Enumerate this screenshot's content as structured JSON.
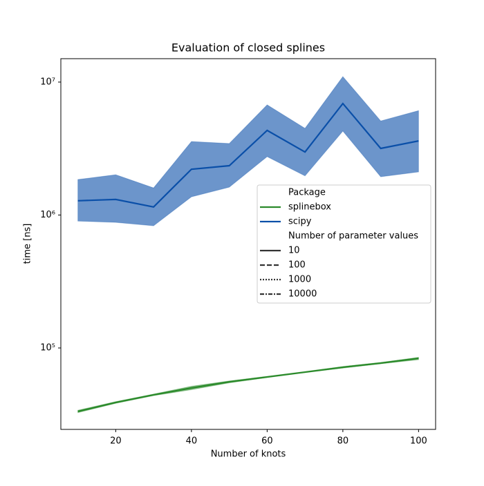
{
  "chart_data": {
    "type": "line",
    "title": "Evaluation of closed splines",
    "xlabel": "Number of knots",
    "ylabel": "time [ns]",
    "x": [
      10,
      20,
      30,
      40,
      50,
      60,
      70,
      80,
      90,
      100
    ],
    "xlim": [
      5.5,
      104.5
    ],
    "xticks": [
      20,
      40,
      60,
      80,
      100
    ],
    "ylim": [
      24400,
      15000000
    ],
    "yticks": [
      {
        "value": 100000,
        "label": "10⁵"
      },
      {
        "value": 1000000,
        "label": "10⁶"
      },
      {
        "value": 10000000,
        "label": "10⁷"
      }
    ],
    "yscale": "log",
    "legend_title": "Package",
    "series": [
      {
        "name": "splinebox",
        "color": "#2a8a2a",
        "values": [
          33300,
          38900,
          44400,
          50000,
          55600,
          60500,
          65800,
          71600,
          76900,
          83600
        ],
        "lower": [
          32600,
          38300,
          43800,
          48500,
          54600,
          59800,
          65200,
          70500,
          76000,
          81600
        ],
        "upper": [
          34000,
          39500,
          45000,
          51500,
          56500,
          61200,
          66400,
          72600,
          77800,
          85000
        ]
      },
      {
        "name": "scipy",
        "color": "#0a4fa8",
        "values": [
          1280000,
          1310000,
          1150000,
          2210000,
          2350000,
          4330000,
          2980000,
          6900000,
          3170000,
          3610000
        ],
        "lower": [
          900000,
          880000,
          830000,
          1370000,
          1620000,
          2750000,
          1970000,
          4280000,
          1940000,
          2110000
        ],
        "upper": [
          1850000,
          2010000,
          1600000,
          3570000,
          3450000,
          6740000,
          4490000,
          11000000,
          5100000,
          6100000
        ]
      }
    ],
    "style_legend": {
      "title": "Number of parameter values",
      "entries": [
        {
          "label": "10",
          "dash": "solid"
        },
        {
          "label": "100",
          "dash": "dashed"
        },
        {
          "label": "1000",
          "dash": "dotted"
        },
        {
          "label": "10000",
          "dash": "dashdot"
        }
      ]
    }
  }
}
